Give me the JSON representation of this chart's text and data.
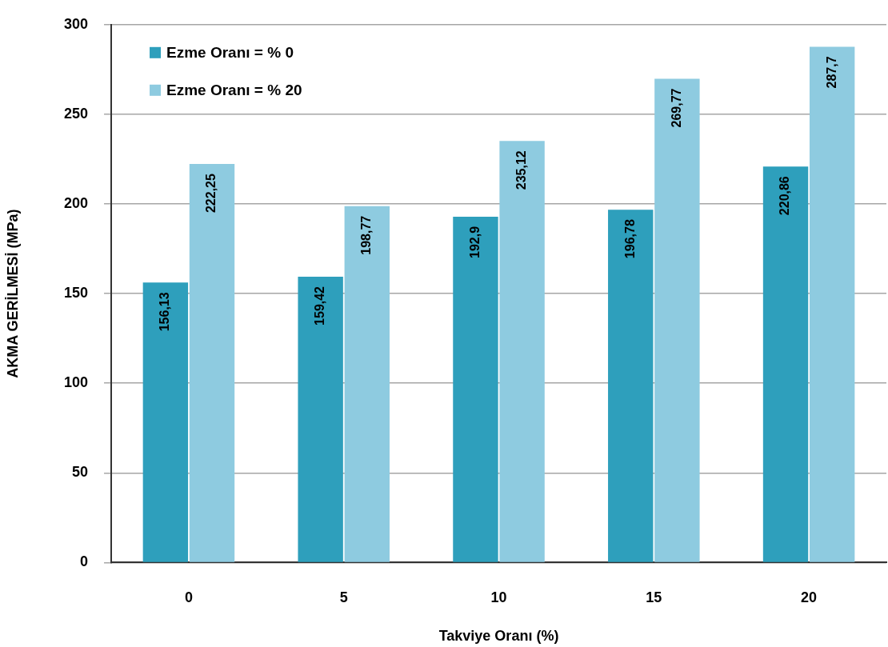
{
  "chart_data": {
    "type": "bar",
    "xlabel": "Takviye Oranı (%)",
    "ylabel": "AKMA GERİLMESİ (MPa)",
    "categories": [
      "0",
      "5",
      "10",
      "15",
      "20"
    ],
    "series": [
      {
        "name": "Ezme Oranı = % 0",
        "color": "#2e9fbc",
        "values": [
          156.13,
          159.42,
          192.9,
          196.78,
          220.86
        ],
        "value_labels": [
          "156,13",
          "159,42",
          "192,9",
          "196,78",
          "220,86"
        ]
      },
      {
        "name": "Ezme Oranı = % 20",
        "color": "#8ecbe0",
        "values": [
          222.25,
          198.77,
          235.12,
          269.77,
          287.7
        ],
        "value_labels": [
          "222,25",
          "198,77",
          "235,12",
          "269,77",
          "287,7"
        ]
      }
    ],
    "ylim": [
      0,
      300
    ],
    "yticks": [
      0,
      50,
      100,
      150,
      200,
      250,
      300
    ],
    "grid": "y",
    "legend": "top left"
  }
}
